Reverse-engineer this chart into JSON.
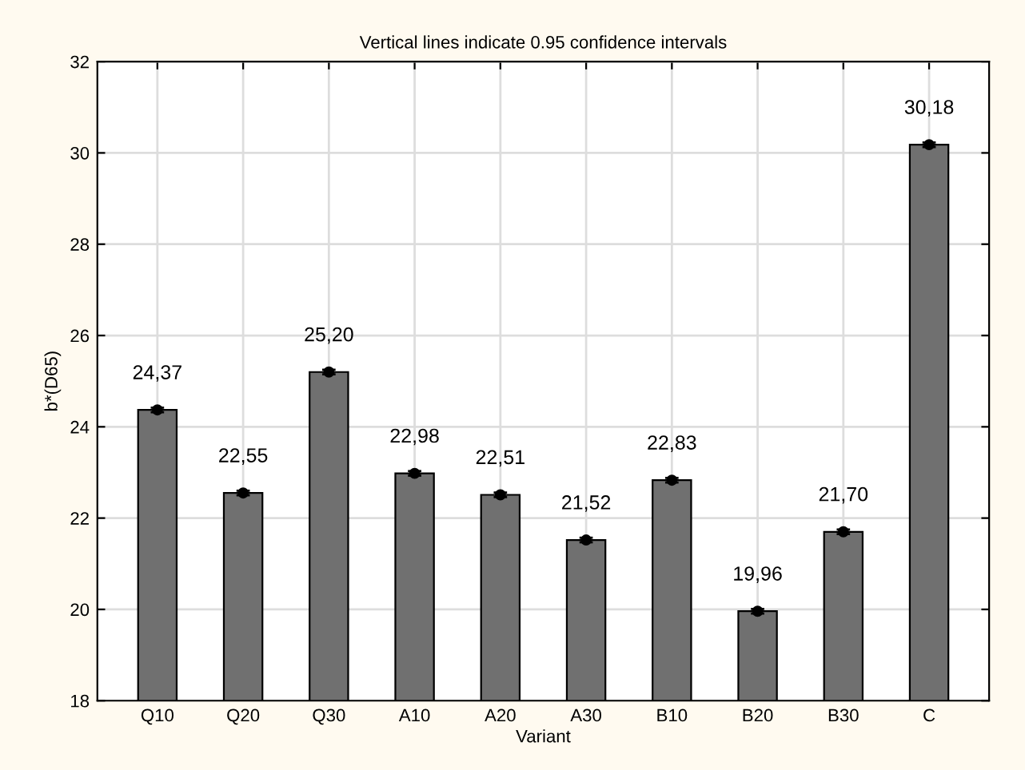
{
  "chart_data": {
    "type": "bar",
    "title": "Vertical lines indicate 0.95 confidence intervals",
    "xlabel": "Variant",
    "ylabel": "b*(D65)",
    "categories": [
      "Q10",
      "Q20",
      "Q30",
      "A10",
      "A20",
      "A30",
      "B10",
      "B20",
      "B30",
      "C"
    ],
    "series": [
      {
        "color": "#707070",
        "values": [
          24.37,
          22.55,
          25.2,
          22.98,
          22.51,
          21.52,
          22.83,
          19.96,
          21.7,
          30.18
        ],
        "value_labels": [
          "24,37",
          "22,55",
          "25,20",
          "22,98",
          "22,51",
          "21,52",
          "22,83",
          "19,96",
          "21,70",
          "30,18"
        ]
      },
      {
        "type": "scatter",
        "color": "#000000",
        "x": [
          "Q10",
          "Q20",
          "Q30",
          "A10",
          "A20",
          "A30",
          "B10",
          "B20",
          "B30",
          "C"
        ],
        "values": [
          24.37,
          22.55,
          25.2,
          22.98,
          22.51,
          21.52,
          22.83,
          19.96,
          21.7,
          30.18
        ],
        "errors": [
          0.05,
          0.05,
          0.05,
          0.05,
          0.05,
          0.05,
          0.05,
          0.05,
          0.05,
          0.05
        ]
      }
    ],
    "marker": "circle",
    "ylim": [
      18,
      32
    ],
    "yticks": [
      18,
      20,
      22,
      24,
      26,
      28,
      30,
      32
    ],
    "grid": true
  }
}
